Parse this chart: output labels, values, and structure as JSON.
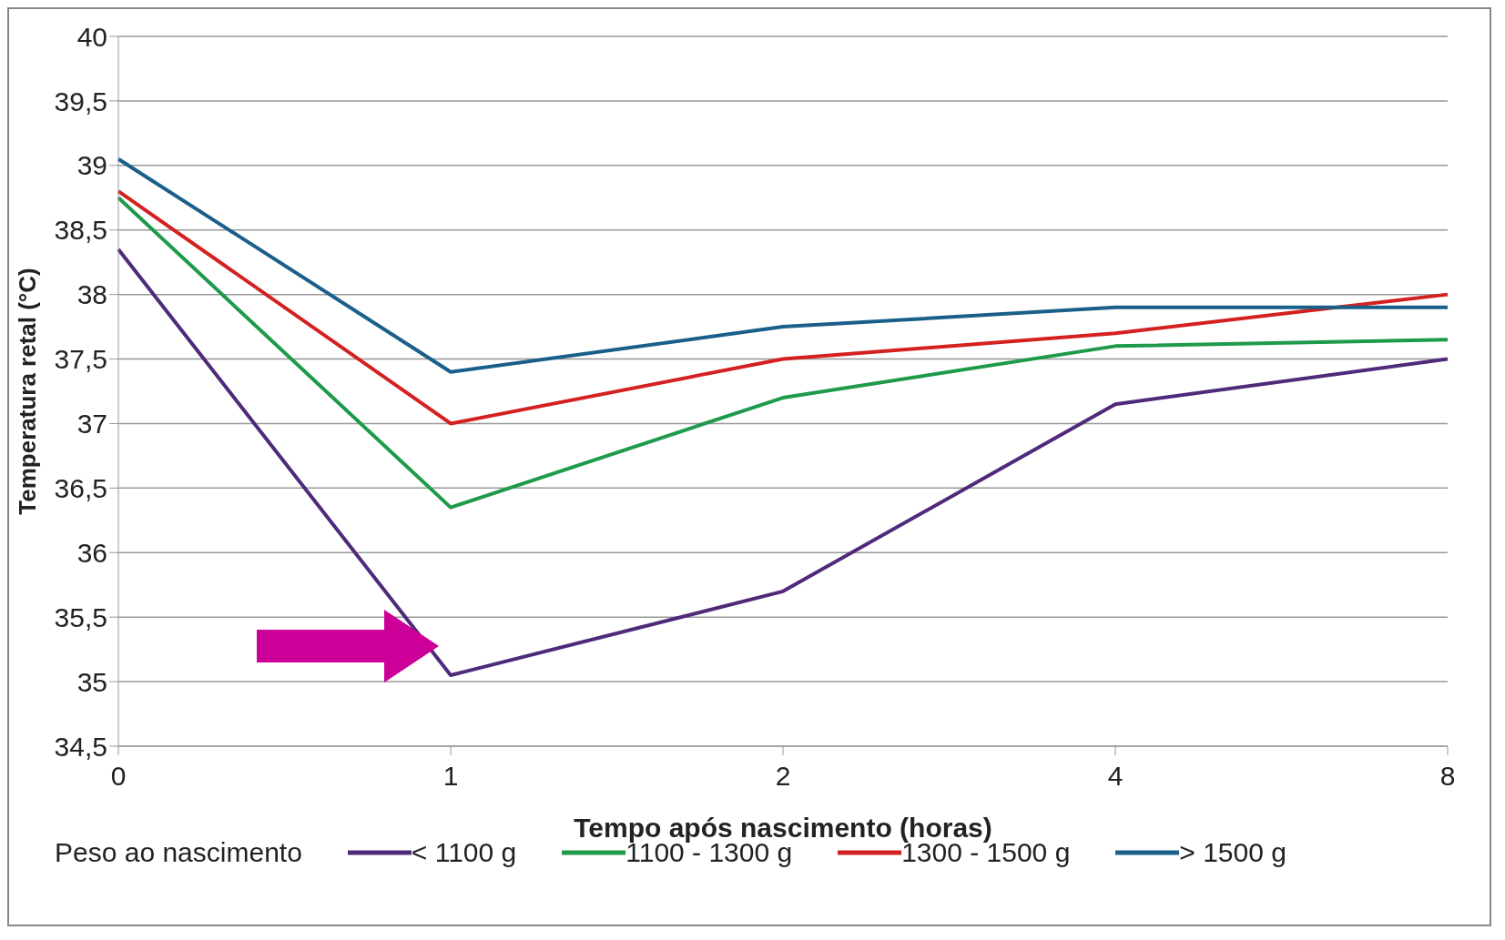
{
  "chart_data": {
    "type": "line",
    "xlabel": "Tempo após nascimento (horas)",
    "ylabel": "Temperatura retal (°C)",
    "legend_title": "Peso ao nascimento",
    "categories": [
      "0",
      "1",
      "2",
      "4",
      "8"
    ],
    "series": [
      {
        "name": "< 1100 g",
        "color": "#4f2a7a",
        "values": [
          38.35,
          35.05,
          35.7,
          37.15,
          37.5
        ]
      },
      {
        "name": "1100 - 1300 g",
        "color": "#1e9a4a",
        "values": [
          38.75,
          36.35,
          37.2,
          37.6,
          37.65
        ]
      },
      {
        "name": "1300 - 1500 g",
        "color": "#d42020",
        "values": [
          38.8,
          37.0,
          37.5,
          37.7,
          38.0
        ]
      },
      {
        "name": "> 1500 g",
        "color": "#1a5f8a",
        "values": [
          39.05,
          37.4,
          37.75,
          37.9,
          37.9
        ]
      }
    ],
    "ylim": [
      34.5,
      40
    ],
    "yticks": [
      {
        "value": 34.5,
        "label": "34,5"
      },
      {
        "value": 35,
        "label": "35"
      },
      {
        "value": 35.5,
        "label": "35,5"
      },
      {
        "value": 36,
        "label": "36"
      },
      {
        "value": 36.5,
        "label": "36,5"
      },
      {
        "value": 37,
        "label": "37"
      },
      {
        "value": 37.5,
        "label": "37,5"
      },
      {
        "value": 38,
        "label": "38"
      },
      {
        "value": 38.5,
        "label": "38,5"
      },
      {
        "value": 39,
        "label": "39"
      },
      {
        "value": 39.5,
        "label": "39,5"
      },
      {
        "value": 40,
        "label": "40"
      }
    ],
    "grid": "y",
    "legend": "bottom",
    "marker": "none",
    "line_style": "solid"
  }
}
